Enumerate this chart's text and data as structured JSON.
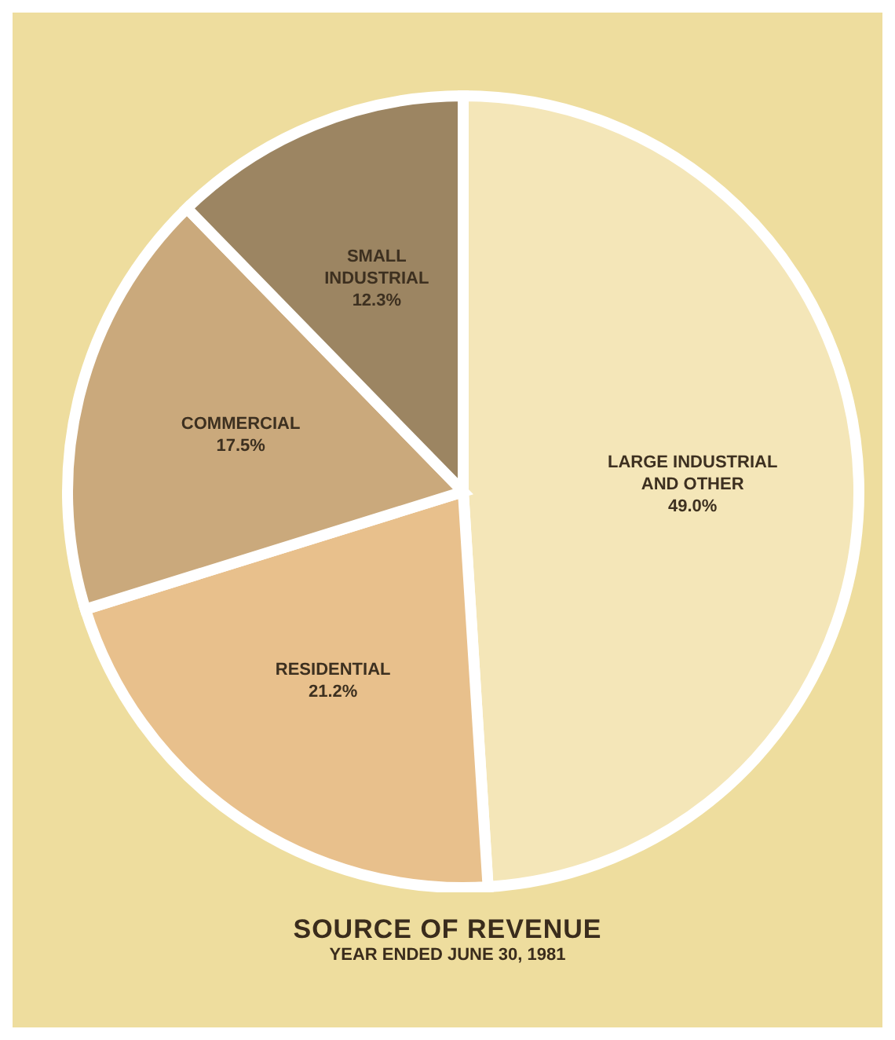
{
  "chart_data": {
    "type": "pie",
    "title": "SOURCE OF REVENUE",
    "subtitle": "YEAR ENDED JUNE 30, 1981",
    "categories": [
      "LARGE INDUSTRIAL AND OTHER",
      "RESIDENTIAL",
      "COMMERCIAL",
      "SMALL INDUSTRIAL"
    ],
    "values": [
      49.0,
      21.2,
      17.5,
      12.3
    ],
    "colors": [
      "#f4e6b8",
      "#e8c08c",
      "#caa97c",
      "#9c8562"
    ],
    "value_labels": [
      "49.0%",
      "21.2%",
      "17.5%",
      "12.3%"
    ],
    "legend": false
  }
}
